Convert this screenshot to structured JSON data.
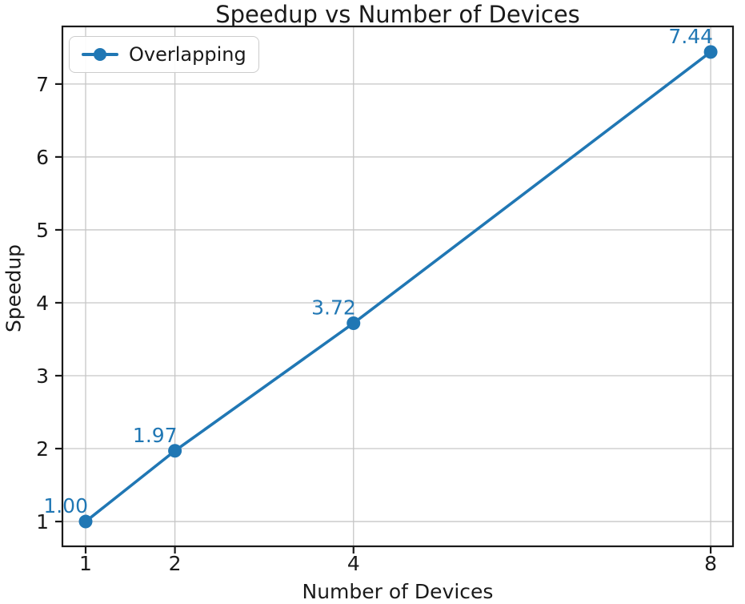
{
  "chart_data": {
    "type": "line",
    "title": "Speedup vs Number of Devices",
    "xlabel": "Number of Devices",
    "ylabel": "Speedup",
    "series": [
      {
        "name": "Overlapping",
        "color": "#2077b4",
        "x": [
          1,
          2,
          4,
          8
        ],
        "y": [
          1.0,
          1.97,
          3.72,
          7.44
        ],
        "point_labels": [
          "1.00",
          "1.97",
          "3.72",
          "7.44"
        ]
      }
    ],
    "x_ticks": [
      1,
      2,
      4,
      8
    ],
    "x_tick_labels": [
      "1",
      "2",
      "4",
      "8"
    ],
    "y_ticks": [
      1,
      2,
      3,
      4,
      5,
      6,
      7
    ],
    "y_tick_labels": [
      "1",
      "2",
      "3",
      "4",
      "5",
      "6",
      "7"
    ],
    "xlim": [
      0.74,
      8.25
    ],
    "ylim": [
      0.66,
      7.79
    ],
    "x_scale": "linear",
    "grid": true,
    "legend_position": "upper left",
    "colors": {
      "annotation": "#2077b4",
      "grid": "#c6c6c6",
      "axis": "#1a1a1a",
      "tick_text": "#1a1a1a",
      "background": "#ffffff"
    }
  }
}
